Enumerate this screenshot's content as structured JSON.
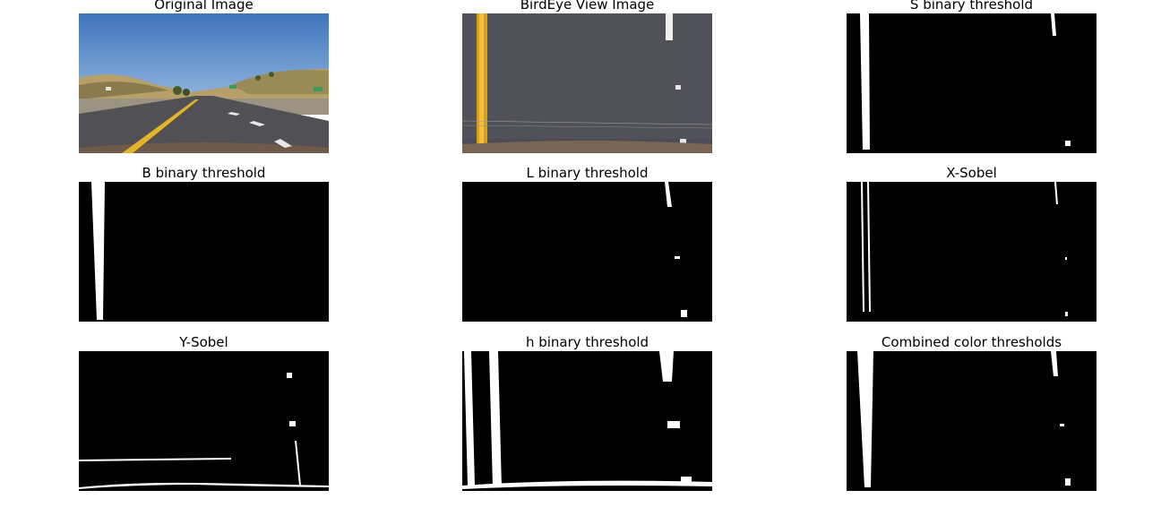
{
  "panels": [
    {
      "id": "original",
      "title": "Original Image"
    },
    {
      "id": "birdeye",
      "title": "BirdEye View Image"
    },
    {
      "id": "s_binary",
      "title": "S binary threshold"
    },
    {
      "id": "b_binary",
      "title": "B binary threshold"
    },
    {
      "id": "l_binary",
      "title": "L binary threshold"
    },
    {
      "id": "x_sobel",
      "title": "X-Sobel"
    },
    {
      "id": "y_sobel",
      "title": "Y-Sobel"
    },
    {
      "id": "h_binary",
      "title": "h binary threshold"
    },
    {
      "id": "combined",
      "title": "Combined color thresholds"
    }
  ]
}
